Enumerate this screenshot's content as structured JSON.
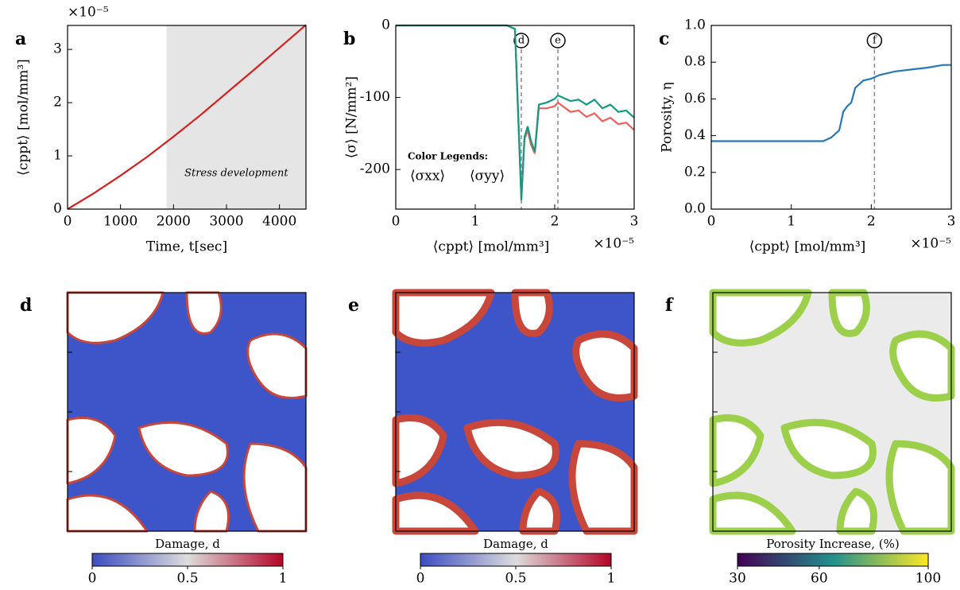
{
  "chart_data": [
    {
      "type": "line",
      "panel": "a",
      "xlabel": "Time,  t[sec]",
      "ylabel": "⟨cppt⟩  [mol/mm³]",
      "y_offset_label": "×10⁻⁵",
      "x": [
        0,
        500,
        1000,
        1500,
        2000,
        2500,
        3000,
        3500,
        4000,
        4500
      ],
      "series": [
        {
          "color": "#d62020",
          "values": [
            0,
            0.3,
            0.63,
            0.98,
            1.36,
            1.76,
            2.18,
            2.6,
            3.03,
            3.46
          ]
        }
      ],
      "shade": {
        "x": [
          1870,
          4500
        ],
        "label": "Stress development",
        "color": "#e5e5e5"
      },
      "xlim": [
        0,
        4500
      ],
      "xticks": [
        0,
        1000,
        2000,
        3000,
        4000
      ],
      "ylim": [
        0,
        3.45
      ],
      "yticks": [
        0,
        1,
        2,
        3
      ]
    },
    {
      "type": "line",
      "panel": "b",
      "xlabel": "⟨cppt⟩  [mol/mm³]",
      "x_offset_label": "×10⁻⁵",
      "ylabel": "⟨σ⟩  [N/mm²]",
      "x": [
        0,
        0.5,
        1.0,
        1.4,
        1.5,
        1.55,
        1.58,
        1.62,
        1.66,
        1.7,
        1.75,
        1.8,
        1.9,
        2.0,
        2.04,
        2.1,
        2.2,
        2.3,
        2.4,
        2.5,
        2.6,
        2.7,
        2.8,
        2.9,
        3.0
      ],
      "legend_title": "Color Legends:",
      "series": [
        {
          "name": "⟨σxx⟩",
          "color": "#f0605a",
          "values": [
            0,
            0,
            0,
            0,
            -5,
            -155,
            -240,
            -158,
            -145,
            -165,
            -178,
            -115,
            -115,
            -112,
            -107,
            -112,
            -120,
            -118,
            -127,
            -122,
            -133,
            -128,
            -137,
            -135,
            -145
          ]
        },
        {
          "name": "⟨σyy⟩",
          "color": "#139a80",
          "values": [
            0,
            0,
            0,
            0,
            -5,
            -150,
            -243,
            -155,
            -140,
            -160,
            -175,
            -110,
            -107,
            -102,
            -97,
            -100,
            -105,
            -103,
            -110,
            -103,
            -115,
            -110,
            -120,
            -118,
            -128
          ]
        }
      ],
      "vlines": [
        {
          "x": 1.58,
          "label": "d"
        },
        {
          "x": 2.04,
          "label": "e"
        }
      ],
      "xlim": [
        0,
        3
      ],
      "xticks": [
        0,
        1,
        2,
        3
      ],
      "ylim": [
        -255,
        0
      ],
      "yticks": [
        0,
        -100,
        -200
      ]
    },
    {
      "type": "line",
      "panel": "c",
      "xlabel": "⟨cppt⟩  [mol/mm³]",
      "x_offset_label": "×10⁻⁵",
      "ylabel": "Porosity, η",
      "x": [
        0,
        1.4,
        1.5,
        1.6,
        1.65,
        1.7,
        1.75,
        1.8,
        1.85,
        1.9,
        2.0,
        2.1,
        2.3,
        2.5,
        2.7,
        2.9,
        3.0
      ],
      "series": [
        {
          "color": "#2878b5",
          "values": [
            0.37,
            0.37,
            0.39,
            0.43,
            0.53,
            0.56,
            0.58,
            0.66,
            0.68,
            0.7,
            0.71,
            0.73,
            0.75,
            0.76,
            0.77,
            0.785,
            0.785
          ]
        }
      ],
      "vlines": [
        {
          "x": 2.04,
          "label": "f"
        }
      ],
      "xlim": [
        0,
        3
      ],
      "xticks": [
        0,
        1,
        2,
        3
      ],
      "ylim": [
        0,
        1
      ],
      "yticks": [
        {
          "value": 0,
          "label": "0.0"
        },
        {
          "value": 0.2,
          "label": "0.2"
        },
        {
          "value": 0.4,
          "label": "0.4"
        },
        {
          "value": 0.6,
          "label": "0.6"
        },
        {
          "value": 0.8,
          "label": "0.8"
        },
        {
          "value": 1,
          "label": "1.0"
        }
      ]
    }
  ],
  "maps": [
    {
      "panel": "d",
      "colorbar": {
        "label": "Damage, d",
        "lim": [
          0,
          1
        ],
        "ticks": [
          0,
          0.5,
          1
        ],
        "colors": [
          "#3b4cc0",
          "#dddddd",
          "#b40426"
        ]
      }
    },
    {
      "panel": "e",
      "colorbar": {
        "label": "Damage, d",
        "lim": [
          0,
          1
        ],
        "ticks": [
          0,
          0.5,
          1
        ],
        "colors": [
          "#3b4cc0",
          "#dddddd",
          "#b40426"
        ]
      }
    },
    {
      "panel": "f",
      "colorbar": {
        "label": "Porosity Increase, (%)",
        "lim": [
          30,
          100
        ],
        "ticks": [
          30,
          60,
          100
        ],
        "colors": [
          "#440154",
          "#21918c",
          "#fde725"
        ]
      }
    }
  ]
}
